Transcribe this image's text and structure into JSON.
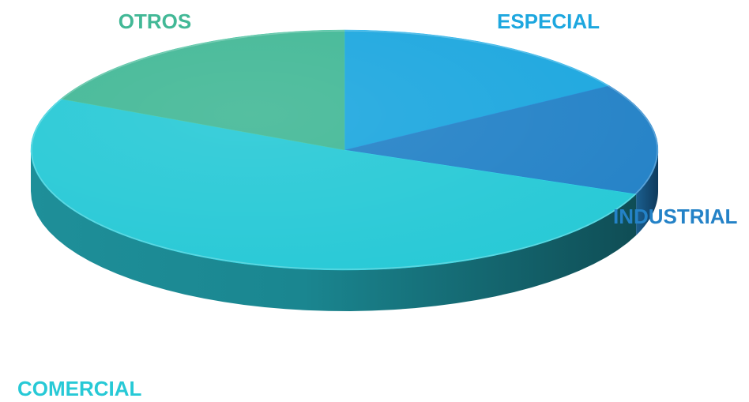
{
  "chart_data": {
    "type": "pie",
    "categories": [
      "ESPECIAL",
      "INDUSTRIAL",
      "COMERCIAL",
      "OTROS"
    ],
    "values": [
      16,
      15,
      51,
      18
    ],
    "colors": [
      "#1DA7DF",
      "#2482C7",
      "#27C9D6",
      "#42B896"
    ],
    "label_colors": [
      "#1DA7DF",
      "#2482C7",
      "#27C9D6",
      "#42B896"
    ],
    "style": "3d",
    "legend": "none",
    "data_labels": "category names outside slices"
  }
}
